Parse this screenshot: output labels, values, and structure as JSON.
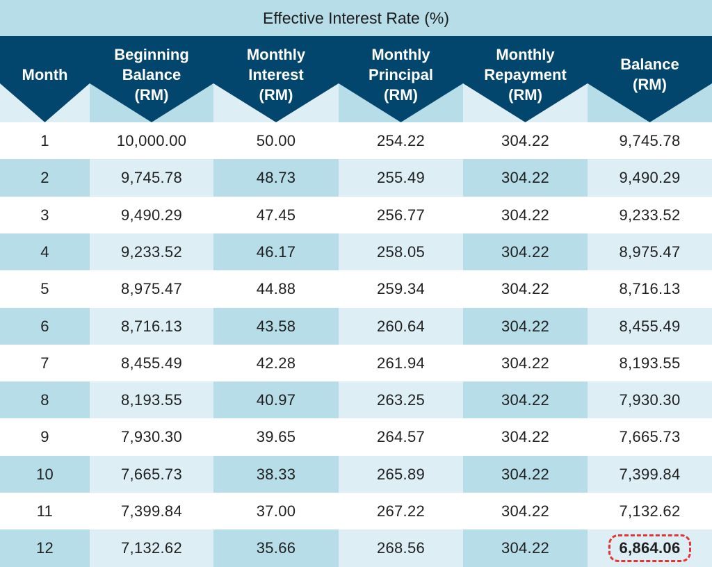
{
  "title": "Effective Interest Rate (%)",
  "colors": {
    "header_dark": "#03466d",
    "band_light": "#b6dde8",
    "band_pale": "#ddeff5",
    "highlight_border": "#e53333"
  },
  "columns": [
    {
      "label": "Month"
    },
    {
      "label": "Beginning\nBalance\n(RM)"
    },
    {
      "label": "Monthly\nInterest\n(RM)"
    },
    {
      "label": "Monthly\nPrincipal\n(RM)"
    },
    {
      "label": "Monthly\nRepayment\n(RM)"
    },
    {
      "label": "Balance\n(RM)"
    }
  ],
  "rows": [
    [
      "1",
      "10,000.00",
      "50.00",
      "254.22",
      "304.22",
      "9,745.78"
    ],
    [
      "2",
      "9,745.78",
      "48.73",
      "255.49",
      "304.22",
      "9,490.29"
    ],
    [
      "3",
      "9,490.29",
      "47.45",
      "256.77",
      "304.22",
      "9,233.52"
    ],
    [
      "4",
      "9,233.52",
      "46.17",
      "258.05",
      "304.22",
      "8,975.47"
    ],
    [
      "5",
      "8,975.47",
      "44.88",
      "259.34",
      "304.22",
      "8,716.13"
    ],
    [
      "6",
      "8,716.13",
      "43.58",
      "260.64",
      "304.22",
      "8,455.49"
    ],
    [
      "7",
      "8,455.49",
      "42.28",
      "261.94",
      "304.22",
      "8,193.55"
    ],
    [
      "8",
      "8,193.55",
      "40.97",
      "263.25",
      "304.22",
      "7,930.30"
    ],
    [
      "9",
      "7,930.30",
      "39.65",
      "264.57",
      "304.22",
      "7,665.73"
    ],
    [
      "10",
      "7,665.73",
      "38.33",
      "265.89",
      "304.22",
      "7,399.84"
    ],
    [
      "11",
      "7,399.84",
      "37.00",
      "267.22",
      "304.22",
      "7,132.62"
    ],
    [
      "12",
      "7,132.62",
      "35.66",
      "268.56",
      "304.22",
      "6,864.06"
    ]
  ],
  "highlighted_cell": {
    "row": 11,
    "col": 5
  }
}
